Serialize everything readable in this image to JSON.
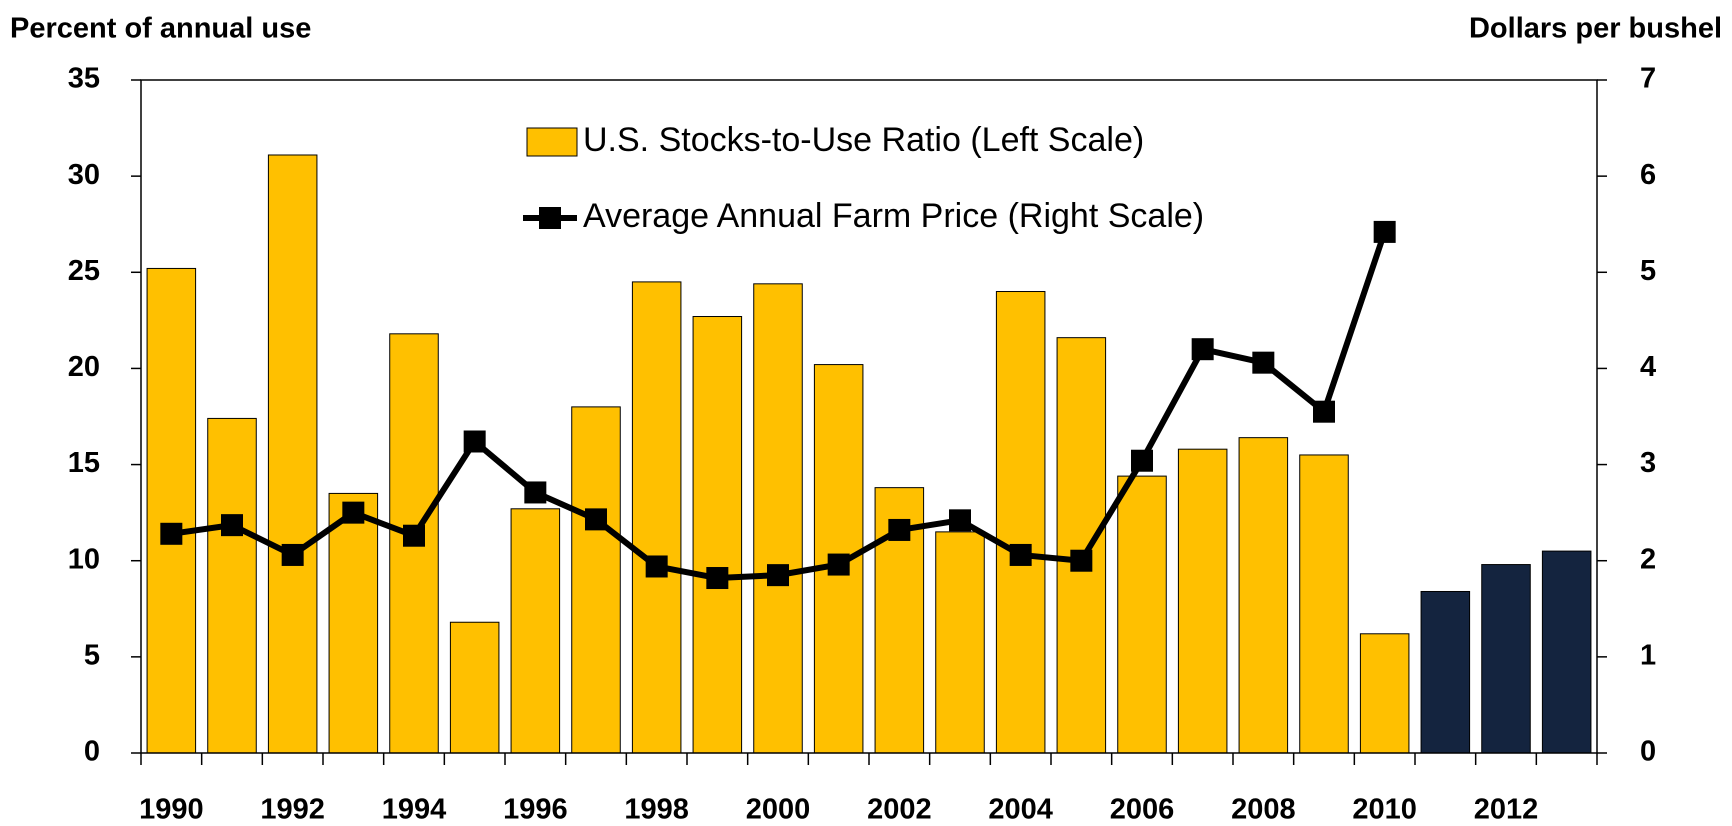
{
  "chart_data": {
    "type": "bar",
    "y_label": "Percent of annual use",
    "y2_label": "Dollars per bushel",
    "categories": [
      "1990",
      null,
      "1992",
      null,
      "1994",
      null,
      "1996",
      null,
      "1998",
      null,
      "2000",
      null,
      "2002",
      null,
      "2004",
      null,
      "2006",
      null,
      "2008",
      null,
      "2010",
      null,
      "2012",
      null
    ],
    "series": [
      {
        "name": "U.S. Stocks-to-Use Ratio (Left Scale)",
        "type": "bar",
        "color": "#FFC000",
        "colors": [
          "#FFC000",
          "#FFC000",
          "#FFC000",
          "#FFC000",
          "#FFC000",
          "#FFC000",
          "#FFC000",
          "#FFC000",
          "#FFC000",
          "#FFC000",
          "#FFC000",
          "#FFC000",
          "#FFC000",
          "#FFC000",
          "#FFC000",
          "#FFC000",
          "#FFC000",
          "#FFC000",
          "#FFC000",
          "#FFC000",
          "#FFC000",
          "#14243F",
          "#14243F",
          "#14243F"
        ],
        "values": [
          25.2,
          17.4,
          31.1,
          13.5,
          21.8,
          6.8,
          12.7,
          18.0,
          24.5,
          22.7,
          24.4,
          20.2,
          13.8,
          11.5,
          24.0,
          21.6,
          14.4,
          15.8,
          16.4,
          15.5,
          6.2,
          8.4,
          9.8,
          10.5
        ]
      },
      {
        "name": "Average Annual Farm Price (Right Scale)",
        "type": "line",
        "axis": "y2",
        "color": "#000000",
        "values": [
          2.28,
          2.37,
          2.06,
          2.5,
          2.26,
          3.24,
          2.71,
          2.43,
          1.94,
          1.82,
          1.85,
          1.96,
          2.32,
          2.42,
          2.06,
          2.0,
          3.04,
          4.2,
          4.06,
          3.55,
          5.42,
          null,
          null,
          null
        ]
      }
    ],
    "ylim": [
      0,
      35
    ],
    "yticks": [
      0,
      5,
      10,
      15,
      20,
      25,
      30,
      35
    ],
    "y2lim": [
      0,
      7
    ],
    "y2ticks": [
      0,
      1,
      2,
      3,
      4,
      5,
      6,
      7
    ],
    "legend": "top",
    "grid": false
  }
}
